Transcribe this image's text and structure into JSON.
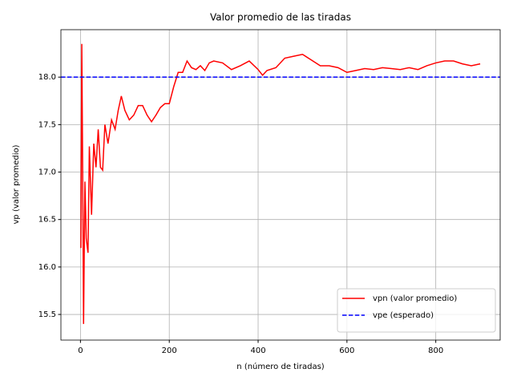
{
  "chart_data": {
    "type": "line",
    "title": "Valor promedio de las tiradas",
    "x_label": "n (número de tiradas)",
    "y_label": "vp (valor promedio)",
    "series": [
      {
        "name": "vpn (valor promedio)",
        "color": "#ff0000",
        "x": [
          1,
          3,
          5,
          7,
          10,
          13,
          17,
          20,
          25,
          30,
          35,
          40,
          45,
          50,
          55,
          62,
          70,
          78,
          85,
          92,
          100,
          110,
          120,
          130,
          140,
          150,
          160,
          170,
          180,
          190,
          200,
          210,
          220,
          230,
          240,
          250,
          260,
          270,
          280,
          290,
          300,
          320,
          340,
          360,
          380,
          400,
          410,
          420,
          440,
          460,
          480,
          500,
          520,
          540,
          560,
          580,
          600,
          620,
          640,
          660,
          680,
          700,
          720,
          740,
          760,
          780,
          800,
          820,
          840,
          860,
          880,
          900
        ],
        "values": [
          16.2,
          18.35,
          17.0,
          15.4,
          16.9,
          16.3,
          16.15,
          17.27,
          16.55,
          17.3,
          17.05,
          17.45,
          17.05,
          17.02,
          17.5,
          17.3,
          17.55,
          17.45,
          17.65,
          17.8,
          17.65,
          17.55,
          17.6,
          17.7,
          17.7,
          17.6,
          17.53,
          17.6,
          17.68,
          17.72,
          17.72,
          17.9,
          18.05,
          18.05,
          18.17,
          18.1,
          18.08,
          18.12,
          18.07,
          18.15,
          18.17,
          18.15,
          18.08,
          18.12,
          18.17,
          18.08,
          18.02,
          18.07,
          18.1,
          18.2,
          18.22,
          18.24,
          18.18,
          18.12,
          18.12,
          18.1,
          18.05,
          18.07,
          18.09,
          18.08,
          18.1,
          18.09,
          18.08,
          18.1,
          18.08,
          18.12,
          18.15,
          18.17,
          18.17,
          18.14,
          18.12,
          18.14
        ]
      }
    ],
    "hlines": [
      {
        "name": "vpe (esperado)",
        "value": 18,
        "color": "#0000ff",
        "style": "dashed"
      }
    ],
    "xlim": [
      -44,
      945
    ],
    "ylim": [
      15.23,
      18.5
    ],
    "xticks": [
      0,
      200,
      400,
      600,
      800
    ],
    "yticks": [
      15.5,
      {
        "value": 16,
        "label": "16.0"
      },
      16.5,
      {
        "value": 17,
        "label": "17.0"
      },
      17.5,
      {
        "value": 18,
        "label": "18.0"
      }
    ],
    "grid": true,
    "legend": "lower-right"
  }
}
